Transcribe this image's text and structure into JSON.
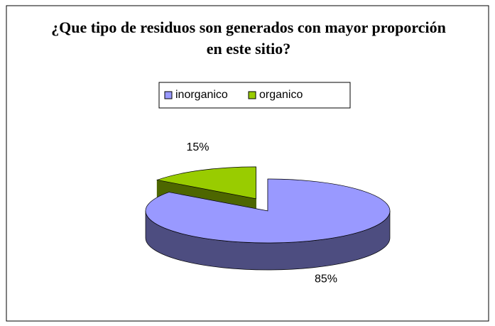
{
  "chart_data": {
    "type": "pie",
    "title": "¿Que tipo de residuos son generados con mayor proporción en este sitio?",
    "categories": [
      "inorganico",
      "organico"
    ],
    "values": [
      85,
      15
    ],
    "value_labels": [
      "85%",
      "15%"
    ],
    "colors": [
      "#9999ff",
      "#99cc00"
    ],
    "side_colors": [
      "#4d4d80",
      "#4d6600"
    ],
    "exploded": [
      false,
      true
    ],
    "legend": "top"
  }
}
